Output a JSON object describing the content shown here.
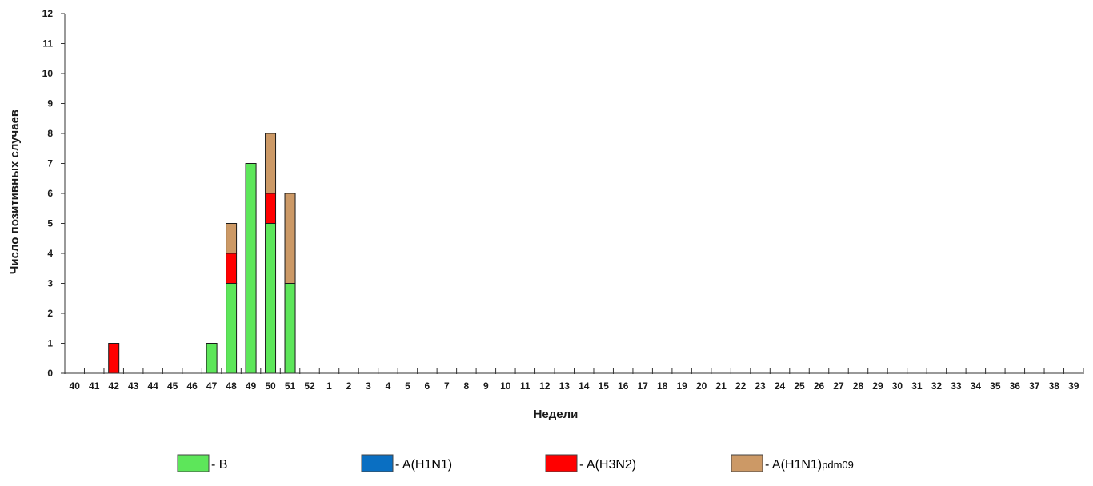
{
  "chart_data": {
    "type": "bar",
    "stacked": true,
    "xlabel": "Недели",
    "ylabel": "Число позитивных случаев",
    "ylim": [
      0,
      12
    ],
    "yticks": [
      0,
      1,
      2,
      3,
      4,
      5,
      6,
      7,
      8,
      9,
      10,
      11,
      12
    ],
    "grid": false,
    "legend_position": "bottom",
    "categories": [
      "40",
      "41",
      "42",
      "43",
      "44",
      "45",
      "46",
      "47",
      "48",
      "49",
      "50",
      "51",
      "52",
      "1",
      "2",
      "3",
      "4",
      "5",
      "6",
      "7",
      "8",
      "9",
      "10",
      "11",
      "12",
      "13",
      "14",
      "15",
      "16",
      "17",
      "18",
      "19",
      "20",
      "21",
      "22",
      "23",
      "24",
      "25",
      "26",
      "27",
      "28",
      "29",
      "30",
      "31",
      "32",
      "33",
      "34",
      "35",
      "36",
      "37",
      "38",
      "39"
    ],
    "series": [
      {
        "name": "- B",
        "color": "#5de65a",
        "values": [
          0,
          0,
          0,
          0,
          0,
          0,
          0,
          1,
          3,
          7,
          5,
          3,
          0,
          0,
          0,
          0,
          0,
          0,
          0,
          0,
          0,
          0,
          0,
          0,
          0,
          0,
          0,
          0,
          0,
          0,
          0,
          0,
          0,
          0,
          0,
          0,
          0,
          0,
          0,
          0,
          0,
          0,
          0,
          0,
          0,
          0,
          0,
          0,
          0,
          0,
          0,
          0
        ]
      },
      {
        "name": "- A(H1N1)",
        "color": "#0a6fc2",
        "values": [
          0,
          0,
          0,
          0,
          0,
          0,
          0,
          0,
          0,
          0,
          0,
          0,
          0,
          0,
          0,
          0,
          0,
          0,
          0,
          0,
          0,
          0,
          0,
          0,
          0,
          0,
          0,
          0,
          0,
          0,
          0,
          0,
          0,
          0,
          0,
          0,
          0,
          0,
          0,
          0,
          0,
          0,
          0,
          0,
          0,
          0,
          0,
          0,
          0,
          0,
          0,
          0
        ]
      },
      {
        "name": "- A(H3N2)",
        "color": "#ff0000",
        "values": [
          0,
          0,
          1,
          0,
          0,
          0,
          0,
          0,
          1,
          0,
          1,
          0,
          0,
          0,
          0,
          0,
          0,
          0,
          0,
          0,
          0,
          0,
          0,
          0,
          0,
          0,
          0,
          0,
          0,
          0,
          0,
          0,
          0,
          0,
          0,
          0,
          0,
          0,
          0,
          0,
          0,
          0,
          0,
          0,
          0,
          0,
          0,
          0,
          0,
          0,
          0,
          0
        ]
      },
      {
        "name": "- A(H1N1)",
        "name_sub": "pdm09",
        "color": "#cc9966",
        "values": [
          0,
          0,
          0,
          0,
          0,
          0,
          0,
          0,
          1,
          0,
          2,
          3,
          0,
          0,
          0,
          0,
          0,
          0,
          0,
          0,
          0,
          0,
          0,
          0,
          0,
          0,
          0,
          0,
          0,
          0,
          0,
          0,
          0,
          0,
          0,
          0,
          0,
          0,
          0,
          0,
          0,
          0,
          0,
          0,
          0,
          0,
          0,
          0,
          0,
          0,
          0,
          0
        ]
      }
    ]
  }
}
